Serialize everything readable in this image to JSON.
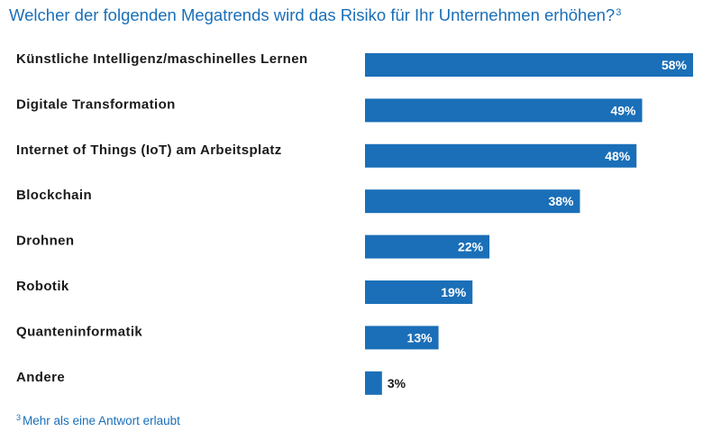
{
  "chart_data": {
    "type": "bar",
    "orientation": "horizontal",
    "title": "Welcher der folgenden Megatrends wird das Risiko für Ihr Unternehmen erhöhen?",
    "title_footnote_marker": "3",
    "categories": [
      "Künstliche Intelligenz/maschinelles Lernen",
      "Digitale Transformation",
      "Internet of Things (IoT) am Arbeitsplatz",
      "Blockchain",
      "Drohnen",
      "Robotik",
      "Quanteninformatik",
      "Andere"
    ],
    "values": [
      58,
      49,
      48,
      38,
      22,
      19,
      13,
      3
    ],
    "value_labels": [
      "58%",
      "49%",
      "48%",
      "38%",
      "22%",
      "19%",
      "13%",
      "3%"
    ],
    "unit": "%",
    "xlim": [
      0,
      58
    ],
    "xlabel": "",
    "ylabel": "",
    "grid": false,
    "legend": "none",
    "bar_color": "#1a6fb8"
  },
  "footnote": {
    "marker": "3",
    "text": "Mehr als eine Antwort erlaubt"
  },
  "colors": {
    "accent": "#1a6fb8",
    "text": "#1a1a1a",
    "inside_label": "#ffffff"
  }
}
